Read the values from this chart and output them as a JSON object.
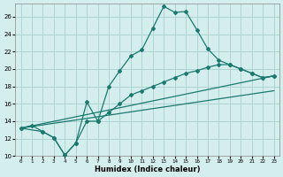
{
  "title": "",
  "xlabel": "Humidex (Indice chaleur)",
  "background_color": "#d4eeee",
  "grid_color": "#aed4d4",
  "line_color": "#1a7a6e",
  "xlim": [
    -0.5,
    23.5
  ],
  "ylim": [
    10,
    27.5
  ],
  "yticks": [
    10,
    12,
    14,
    16,
    18,
    20,
    22,
    24,
    26
  ],
  "xticks": [
    0,
    1,
    2,
    3,
    4,
    5,
    6,
    7,
    8,
    9,
    10,
    11,
    12,
    13,
    14,
    15,
    16,
    17,
    18,
    19,
    20,
    21,
    22,
    23
  ],
  "line1_x": [
    0,
    1,
    2,
    3,
    4,
    5,
    6,
    7,
    8,
    9,
    10,
    11,
    12,
    13,
    14,
    15,
    16,
    17,
    18,
    19,
    20,
    21,
    22,
    23
  ],
  "line1_y": [
    13.2,
    13.5,
    12.8,
    12.1,
    10.1,
    11.5,
    16.2,
    14.0,
    18.0,
    19.8,
    21.5,
    22.2,
    24.7,
    27.2,
    26.5,
    26.6,
    24.5,
    22.3,
    21.0,
    20.5,
    20.0,
    19.5,
    19.0,
    19.2
  ],
  "line2_x": [
    0,
    2,
    3,
    4,
    5,
    6,
    7,
    8,
    9,
    10,
    11,
    12,
    13,
    14,
    15,
    16,
    17,
    18,
    19,
    20,
    21,
    22,
    23
  ],
  "line2_y": [
    13.2,
    12.8,
    12.1,
    10.1,
    11.5,
    14.0,
    14.0,
    15.0,
    16.0,
    17.0,
    17.5,
    18.0,
    18.5,
    19.0,
    19.5,
    19.8,
    20.2,
    20.5,
    20.5,
    20.0,
    19.5,
    19.0,
    19.2
  ],
  "line3_x": [
    0,
    23
  ],
  "line3_y": [
    13.2,
    19.2
  ],
  "line4_x": [
    0,
    23
  ],
  "line4_y": [
    13.2,
    17.5
  ]
}
